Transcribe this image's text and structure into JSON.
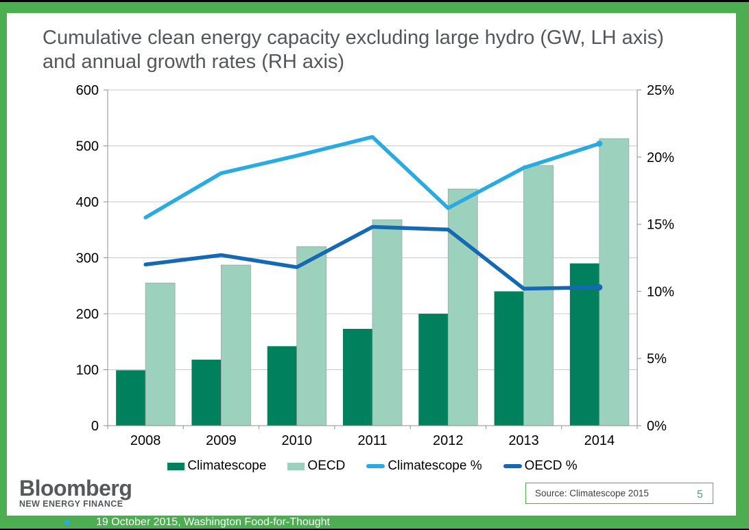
{
  "slide": {
    "title": "Cumulative clean energy capacity excluding large hydro (GW, LH axis) and annual growth rates (RH axis)"
  },
  "chart_data": {
    "type": "combo-bar-line",
    "categories": [
      "2008",
      "2009",
      "2010",
      "2011",
      "2012",
      "2013",
      "2014"
    ],
    "series": [
      {
        "name": "Climatescope",
        "type": "bar",
        "axis": "left",
        "color": "#00805C",
        "values": [
          99,
          118,
          142,
          173,
          200,
          240,
          290
        ]
      },
      {
        "name": "OECD",
        "type": "bar",
        "axis": "left",
        "color": "#9CD1BD",
        "values": [
          255,
          287,
          320,
          368,
          423,
          465,
          513
        ]
      },
      {
        "name": "Climatescope %",
        "type": "line",
        "axis": "right",
        "color": "#29ABE2",
        "values": [
          15.5,
          18.8,
          20.1,
          21.5,
          16.2,
          19.2,
          21.0
        ]
      },
      {
        "name": "OECD %",
        "type": "line",
        "axis": "right",
        "color": "#1568B3",
        "values": [
          12.0,
          12.7,
          11.8,
          14.8,
          14.6,
          10.2,
          10.3
        ]
      }
    ],
    "left_axis": {
      "min": 0,
      "max": 600,
      "step": 100,
      "tick_labels": [
        "0",
        "100",
        "200",
        "300",
        "400",
        "500",
        "600"
      ]
    },
    "right_axis": {
      "min": 0,
      "max": 25,
      "step": 5,
      "tick_labels": [
        "0%",
        "5%",
        "10%",
        "15%",
        "20%",
        "25%"
      ]
    },
    "grid": "horizontal",
    "legend_position": "bottom"
  },
  "footer": {
    "logo_main": "Bloomberg",
    "logo_sub": "NEW ENERGY FINANCE",
    "date_text": "19 October 2015, Washington Food-for-Thought",
    "source": "Source: Climatescope 2015",
    "page_number": "5"
  },
  "colors": {
    "frame_green": "#4CAE51",
    "bar_dark_green": "#00805C",
    "bar_light_green": "#9CD1BD",
    "line_light_blue": "#29ABE2",
    "line_dark_blue": "#1568B3",
    "title_gray": "#54565A",
    "footer_text_white": "#FFFFFF",
    "bullet_blue": "#29ABE2",
    "page_number_green": "#52A57C"
  }
}
